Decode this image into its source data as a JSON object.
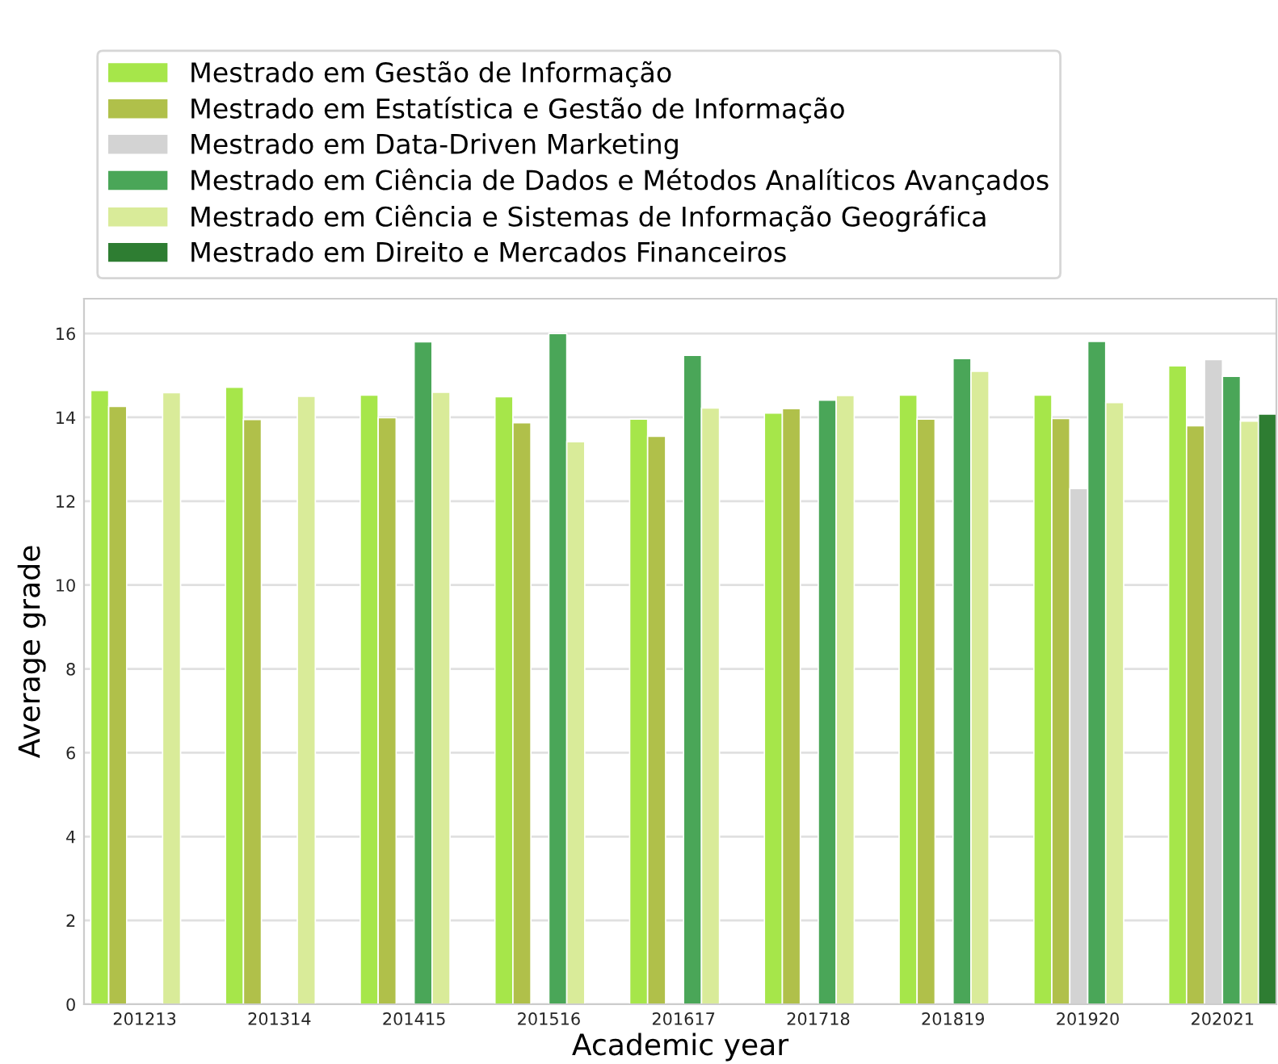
{
  "chart_data": {
    "type": "bar",
    "xlabel": "Academic year",
    "ylabel": "Average grade",
    "categories": [
      "201213",
      "201314",
      "201415",
      "201516",
      "201617",
      "201718",
      "201819",
      "201920",
      "202021"
    ],
    "series": [
      {
        "name": "Mestrado em Gestão de Informação",
        "color": "#a6e64a",
        "values": [
          14.64,
          14.72,
          14.53,
          14.49,
          13.96,
          14.1,
          14.53,
          14.53,
          15.23
        ]
      },
      {
        "name": "Mestrado em Estatística e Gestão de Informação",
        "color": "#b0c04a",
        "values": [
          14.26,
          13.95,
          13.99,
          13.87,
          13.55,
          14.21,
          13.96,
          13.97,
          13.8
        ]
      },
      {
        "name": "Mestrado em Data-Driven Marketing",
        "color": "#d3d3d3",
        "values": [
          null,
          null,
          null,
          null,
          null,
          null,
          null,
          12.3,
          15.38
        ]
      },
      {
        "name": "Mestrado em Ciência de Dados e Métodos Analíticos Avançados",
        "color": "#4aa658",
        "values": [
          null,
          null,
          15.8,
          16.0,
          15.48,
          14.41,
          15.4,
          15.81,
          14.98
        ]
      },
      {
        "name": "Mestrado em Ciência e Sistemas de Informação Geográfica",
        "color": "#d9eb99",
        "values": [
          14.59,
          14.5,
          14.6,
          13.42,
          14.22,
          14.52,
          15.1,
          14.35,
          13.91
        ]
      },
      {
        "name": "Mestrado em Direito e Mercados Financeiros",
        "color": "#2e7d32",
        "values": [
          null,
          null,
          null,
          null,
          null,
          null,
          null,
          null,
          14.08
        ]
      }
    ],
    "ylim": [
      0,
      16.83
    ],
    "yticks": [
      0,
      2,
      4,
      6,
      8,
      10,
      12,
      14,
      16
    ],
    "grid": "y",
    "legend": "top left"
  }
}
